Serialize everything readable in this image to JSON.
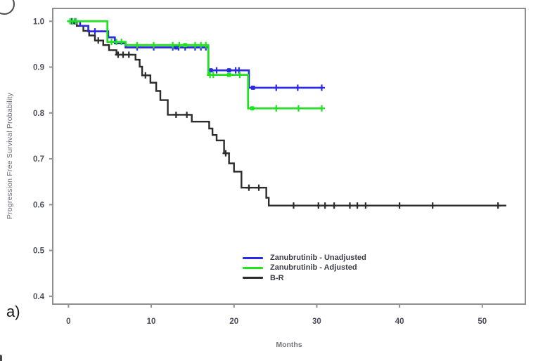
{
  "figure": {
    "panel_label": "a)",
    "background": "#ffffff",
    "axis_color": "#8f8f8f",
    "tick_label_color": "#4d4d58"
  },
  "chart_data": {
    "type": "line",
    "subtype": "kaplan-meier-step",
    "title": "",
    "xlabel": "Months",
    "ylabel": "Progression Free Survival Probability",
    "xlim": [
      -1.9,
      55.2
    ],
    "ylim": [
      0.383,
      1.028
    ],
    "grid": false,
    "legend_position": "inside-bottom-center",
    "xticks": [
      0,
      10,
      20,
      30,
      40,
      50
    ],
    "xtick_labels": [
      "0",
      "10",
      "20",
      "30",
      "40",
      "50"
    ],
    "yticks": [
      1.0,
      0.9,
      0.8,
      0.7,
      0.6,
      0.5,
      0.4
    ],
    "ytick_labels": [
      "1.0",
      "0.9",
      "0.8",
      "0.7",
      "0.6",
      "0.5",
      "0.4"
    ],
    "series": [
      {
        "id": "b-r",
        "name": "B-R",
        "color": "#2b2b2b",
        "line_width": 2.4,
        "end_month": 52.9,
        "steps": [
          [
            0,
            1.0
          ],
          [
            1.0,
            0.99
          ],
          [
            1.8,
            0.979
          ],
          [
            2.5,
            0.969
          ],
          [
            3.2,
            0.958
          ],
          [
            4.2,
            0.948
          ],
          [
            4.9,
            0.937
          ],
          [
            5.8,
            0.927
          ],
          [
            8.1,
            0.916
          ],
          [
            8.6,
            0.901
          ],
          [
            8.9,
            0.882
          ],
          [
            9.9,
            0.866
          ],
          [
            10.6,
            0.848
          ],
          [
            11.1,
            0.828
          ],
          [
            12.0,
            0.796
          ],
          [
            14.9,
            0.781
          ],
          [
            17.0,
            0.766
          ],
          [
            17.4,
            0.752
          ],
          [
            17.9,
            0.74
          ],
          [
            18.8,
            0.712
          ],
          [
            19.4,
            0.69
          ],
          [
            20.0,
            0.672
          ],
          [
            20.9,
            0.637
          ],
          [
            23.9,
            0.615
          ],
          [
            24.2,
            0.598
          ]
        ],
        "censors": [
          [
            3.6,
            0.958
          ],
          [
            6.0,
            0.927
          ],
          [
            6.6,
            0.927
          ],
          [
            7.3,
            0.927
          ],
          [
            9.3,
            0.882
          ],
          [
            13.0,
            0.796
          ],
          [
            14.3,
            0.796
          ],
          [
            19.0,
            0.712
          ],
          [
            21.8,
            0.637
          ],
          [
            23.0,
            0.637
          ],
          [
            27.2,
            0.598
          ],
          [
            30.2,
            0.598
          ],
          [
            31.0,
            0.598
          ],
          [
            32.1,
            0.598
          ],
          [
            34.0,
            0.598
          ],
          [
            34.9,
            0.598
          ],
          [
            35.9,
            0.598
          ],
          [
            40.0,
            0.598
          ],
          [
            44.0,
            0.598
          ],
          [
            51.9,
            0.598
          ]
        ],
        "dots": [
          [
            0.8,
            0.998
          ]
        ]
      },
      {
        "id": "zanubrutinib-unadjusted",
        "name": "Zanubrutinib - Unadjusted",
        "color": "#2a2ae0",
        "line_width": 2.7,
        "end_month": 30.7,
        "steps": [
          [
            0,
            1.0
          ],
          [
            1.4,
            0.99
          ],
          [
            2.4,
            0.978
          ],
          [
            4.8,
            0.965
          ],
          [
            5.6,
            0.952
          ],
          [
            6.9,
            0.943
          ],
          [
            16.9,
            0.893
          ],
          [
            21.8,
            0.855
          ]
        ],
        "censors": [
          [
            0.4,
            1.0
          ],
          [
            0.8,
            1.0
          ],
          [
            3.2,
            0.978
          ],
          [
            8.3,
            0.943
          ],
          [
            10.3,
            0.943
          ],
          [
            12.6,
            0.943
          ],
          [
            13.3,
            0.943
          ],
          [
            14.1,
            0.943
          ],
          [
            15.3,
            0.943
          ],
          [
            16.0,
            0.943
          ],
          [
            16.6,
            0.943
          ],
          [
            17.9,
            0.893
          ],
          [
            20.2,
            0.893
          ],
          [
            20.6,
            0.893
          ],
          [
            25.1,
            0.855
          ],
          [
            27.7,
            0.855
          ],
          [
            30.6,
            0.855
          ]
        ],
        "dots": [
          [
            13.0,
            0.943
          ],
          [
            17.2,
            0.893
          ],
          [
            19.4,
            0.893
          ],
          [
            22.3,
            0.855
          ]
        ]
      },
      {
        "id": "zanubrutinib-adjusted",
        "name": "Zanubrutinib - Adjusted",
        "color": "#1fe31f",
        "line_width": 2.7,
        "end_month": 30.7,
        "steps": [
          [
            0,
            1.0
          ],
          [
            4.7,
            0.955
          ],
          [
            6.9,
            0.948
          ],
          [
            16.9,
            0.883
          ],
          [
            21.7,
            0.81
          ]
        ],
        "censors": [
          [
            0.2,
            1.0
          ],
          [
            0.5,
            1.0
          ],
          [
            0.9,
            1.0
          ],
          [
            5.2,
            0.955
          ],
          [
            5.8,
            0.955
          ],
          [
            6.4,
            0.955
          ],
          [
            8.3,
            0.948
          ],
          [
            10.3,
            0.948
          ],
          [
            12.6,
            0.948
          ],
          [
            13.4,
            0.948
          ],
          [
            15.3,
            0.948
          ],
          [
            16.0,
            0.948
          ],
          [
            16.6,
            0.948
          ],
          [
            17.1,
            0.883
          ],
          [
            17.5,
            0.883
          ],
          [
            20.7,
            0.883
          ],
          [
            25.1,
            0.81
          ],
          [
            27.8,
            0.81
          ],
          [
            30.6,
            0.81
          ]
        ],
        "dots": [
          [
            14.1,
            0.948
          ],
          [
            19.4,
            0.883
          ],
          [
            22.2,
            0.81
          ]
        ]
      }
    ],
    "legend_order": [
      1,
      2,
      0
    ]
  }
}
